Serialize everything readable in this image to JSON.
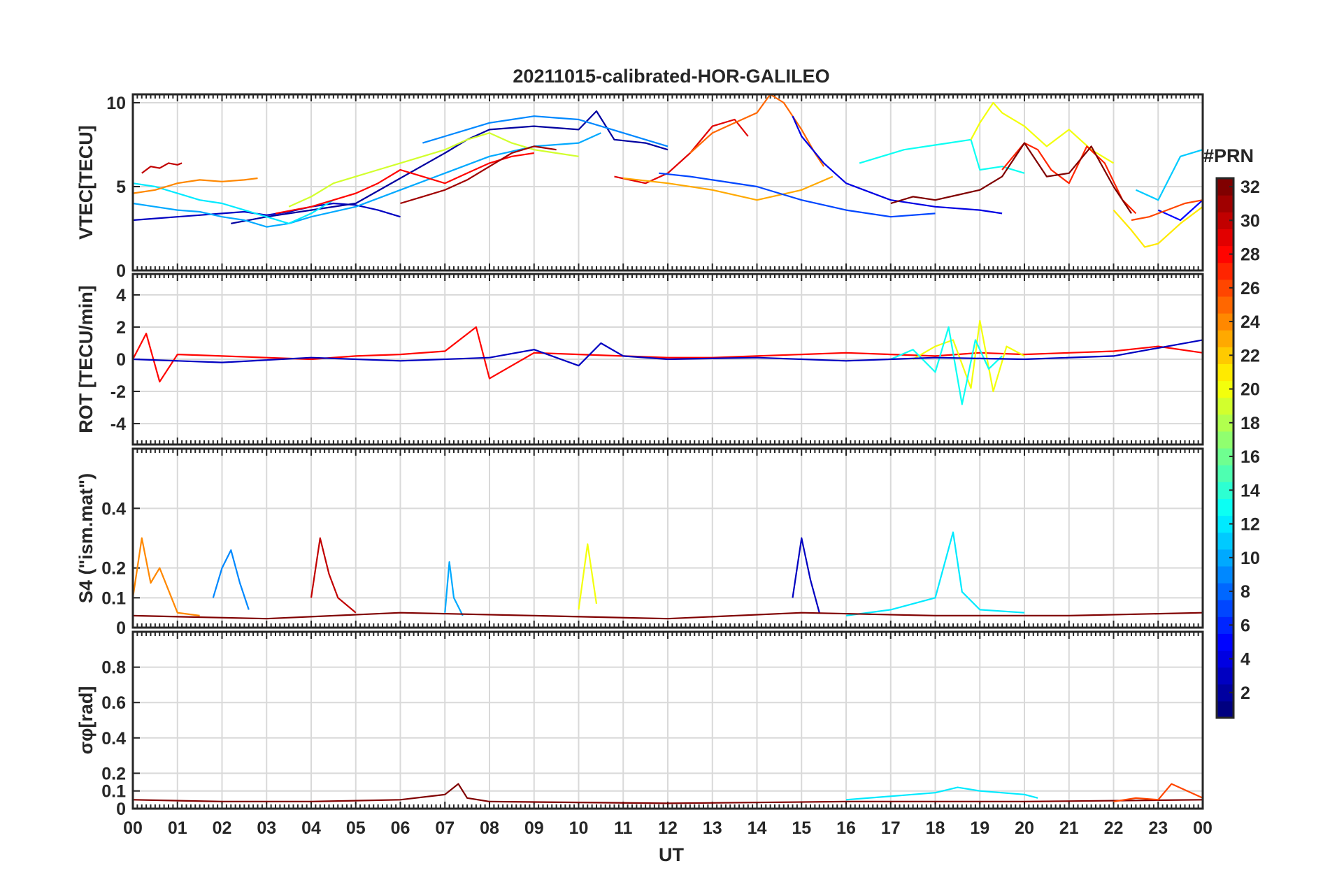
{
  "chart_data": {
    "title": "20211015-calibrated-HOR-GALILEO",
    "type": "line",
    "shared_x": {
      "label": "UT",
      "range_hours": [
        0,
        24
      ],
      "tick_labels": [
        "00",
        "01",
        "02",
        "03",
        "04",
        "05",
        "06",
        "07",
        "08",
        "09",
        "10",
        "11",
        "12",
        "13",
        "14",
        "15",
        "16",
        "17",
        "18",
        "19",
        "20",
        "21",
        "22",
        "23",
        "00"
      ]
    },
    "grid": true,
    "colorbar": {
      "title": "#PRN",
      "colormap": "jet",
      "range": [
        1,
        32
      ],
      "tick_labels": [
        "2",
        "4",
        "6",
        "8",
        "10",
        "12",
        "14",
        "16",
        "18",
        "20",
        "22",
        "24",
        "26",
        "28",
        "30",
        "32"
      ],
      "placement": "right"
    },
    "panels": [
      {
        "id": "vtec",
        "ylabel": "VTEC[TECU]",
        "ylim": [
          0,
          10.5
        ],
        "yticks": [
          0,
          5,
          10
        ],
        "ytick_labels": [
          "0",
          "5",
          "10"
        ],
        "series": [
          {
            "prn": 3,
            "x": [
              0,
              0.5,
              1,
              1.5,
              2,
              2.5,
              3,
              3.5,
              4,
              4.5,
              5,
              5.5,
              6
            ],
            "y": [
              3,
              3.1,
              3.2,
              3.3,
              3.4,
              3.5,
              3.3,
              3.5,
              3.8,
              4,
              3.9,
              3.6,
              3.2
            ]
          },
          {
            "prn": 2,
            "x": [
              2.2,
              3,
              4,
              5,
              6,
              7,
              7.5,
              8,
              9,
              10,
              10.4,
              10.8,
              11.5,
              12
            ],
            "y": [
              2.8,
              3.2,
              3.6,
              4,
              5.5,
              7,
              7.8,
              8.4,
              8.6,
              8.4,
              9.5,
              7.8,
              7.6,
              7.2
            ]
          },
          {
            "prn": 10,
            "x": [
              0,
              0.5,
              1,
              1.5,
              2,
              2.5,
              3,
              3.5,
              4,
              5,
              6,
              7,
              8,
              9,
              10,
              10.5
            ],
            "y": [
              4,
              3.8,
              3.6,
              3.5,
              3.2,
              3,
              2.6,
              2.8,
              3.2,
              3.8,
              4.8,
              5.8,
              6.8,
              7.4,
              7.6,
              8.2
            ]
          },
          {
            "prn": 12,
            "x": [
              0,
              0.5,
              1,
              1.5,
              2,
              2.5,
              3,
              3.5,
              4,
              4.5
            ],
            "y": [
              5.2,
              5,
              4.6,
              4.2,
              4,
              3.6,
              3.2,
              2.8,
              3.4,
              4.2
            ]
          },
          {
            "prn": 19,
            "x": [
              3.5,
              4,
              4.5,
              5,
              5.5,
              6,
              6.5,
              7,
              7.5,
              8,
              8.5,
              9,
              9.5,
              10
            ],
            "y": [
              3.8,
              4.4,
              5.2,
              5.6,
              6,
              6.4,
              6.8,
              7.2,
              7.8,
              8.2,
              7.6,
              7.2,
              7,
              6.8
            ]
          },
          {
            "prn": 9,
            "x": [
              6.5,
              7,
              7.5,
              8,
              8.5,
              9,
              9.5,
              10,
              10.5,
              11,
              11.5,
              12
            ],
            "y": [
              7.6,
              8,
              8.4,
              8.8,
              9,
              9.2,
              9.1,
              9,
              8.6,
              8.2,
              7.8,
              7.4
            ]
          },
          {
            "prn": 30,
            "x": [
              0.2,
              0.4,
              0.6,
              0.8,
              1,
              1.1
            ],
            "y": [
              5.8,
              6.2,
              6.1,
              6.4,
              6.3,
              6.4
            ]
          },
          {
            "prn": 24,
            "x": [
              0,
              0.5,
              1,
              1.5,
              2,
              2.5,
              2.8
            ],
            "y": [
              4.6,
              4.8,
              5.2,
              5.4,
              5.3,
              5.4,
              5.5
            ]
          },
          {
            "prn": 28,
            "x": [
              3.2,
              3.6,
              4,
              4.5,
              5,
              5.5,
              6,
              6.5,
              7,
              7.5,
              8,
              8.5,
              9
            ],
            "y": [
              3.4,
              3.6,
              3.8,
              4.2,
              4.6,
              5.2,
              6,
              5.6,
              5.2,
              5.8,
              6.4,
              6.8,
              7
            ]
          },
          {
            "prn": 31,
            "x": [
              6,
              6.5,
              7,
              7.5,
              8,
              8.5,
              9,
              9.5
            ],
            "y": [
              4,
              4.4,
              4.8,
              5.4,
              6.2,
              7,
              7.4,
              7.2
            ]
          },
          {
            "prn": 29,
            "x": [
              10.8,
              11.5,
              12,
              12.5,
              13,
              13.5,
              13.8
            ],
            "y": [
              5.6,
              5.2,
              5.8,
              7,
              8.6,
              9,
              8
            ]
          },
          {
            "prn": 25,
            "x": [
              12.5,
              13,
              13.5,
              14,
              14.3,
              14.6,
              15,
              15.3,
              15.5
            ],
            "y": [
              7,
              8.2,
              8.8,
              9.4,
              10.5,
              10,
              8.4,
              7,
              6.2
            ]
          },
          {
            "prn": 23,
            "x": [
              11,
              12,
              13,
              14,
              15,
              15.7
            ],
            "y": [
              5.5,
              5.2,
              4.8,
              4.2,
              4.8,
              5.6
            ]
          },
          {
            "prn": 4,
            "x": [
              14.8,
              15,
              15.5,
              16,
              17,
              18,
              19,
              19.5
            ],
            "y": [
              9.2,
              8,
              6.4,
              5.2,
              4.2,
              3.8,
              3.6,
              3.4
            ]
          },
          {
            "prn": 7,
            "x": [
              11.8,
              12.5,
              13,
              14,
              15,
              16,
              17,
              18
            ],
            "y": [
              5.8,
              5.6,
              5.4,
              5,
              4.2,
              3.6,
              3.2,
              3.4
            ]
          },
          {
            "prn": 13,
            "x": [
              16.3,
              16.8,
              17.3,
              17.8,
              18.3,
              18.8,
              19,
              19.5,
              20
            ],
            "y": [
              6.4,
              6.8,
              7.2,
              7.4,
              7.6,
              7.8,
              6,
              6.2,
              5.8
            ]
          },
          {
            "prn": 20,
            "x": [
              18.8,
              19,
              19.3,
              19.5,
              20,
              20.5,
              21,
              21.5,
              22
            ],
            "y": [
              7.8,
              8.8,
              10,
              9.4,
              8.6,
              7.4,
              8.4,
              7.2,
              6.4
            ]
          },
          {
            "prn": 27,
            "x": [
              19.5,
              20,
              20.3,
              20.6,
              21,
              21.4,
              21.8,
              22.2,
              22.5
            ],
            "y": [
              6,
              7.6,
              7.2,
              6,
              5.2,
              7.4,
              6.4,
              4.2,
              3.4
            ]
          },
          {
            "prn": 32,
            "x": [
              17,
              17.5,
              18,
              18.5,
              19,
              19.5,
              20,
              20.5,
              21,
              21.5,
              22,
              22.4
            ],
            "y": [
              4,
              4.4,
              4.2,
              4.5,
              4.8,
              5.6,
              7.6,
              5.6,
              5.8,
              7.4,
              5,
              3.4
            ]
          },
          {
            "prn": 21,
            "x": [
              22,
              22.4,
              22.7,
              23,
              23.5,
              24
            ],
            "y": [
              3.6,
              2.4,
              1.4,
              1.6,
              2.8,
              3.8
            ]
          },
          {
            "prn": 11,
            "x": [
              22.5,
              23,
              23.5,
              24
            ],
            "y": [
              4.8,
              4.2,
              6.8,
              7.2
            ]
          },
          {
            "prn": 5,
            "x": [
              23,
              23.5,
              24
            ],
            "y": [
              3.6,
              3,
              4.2
            ]
          },
          {
            "prn": 26,
            "x": [
              22.4,
              22.8,
              23.2,
              23.6,
              24
            ],
            "y": [
              3,
              3.2,
              3.6,
              4,
              4.2
            ]
          }
        ]
      },
      {
        "id": "rot",
        "ylabel": "ROT [TECU/min]",
        "ylim": [
          -5.3,
          5.3
        ],
        "yticks": [
          -4,
          -2,
          0,
          2,
          4
        ],
        "ytick_labels": [
          "-4",
          "-2",
          "0",
          "2",
          "4"
        ],
        "series": [
          {
            "prn": 28,
            "x": [
              0,
              0.3,
              0.6,
              1,
              2,
              3,
              4,
              5,
              6,
              7,
              7.7,
              8,
              9,
              10,
              11,
              12,
              13,
              14,
              15,
              16,
              17,
              18,
              19,
              20,
              21,
              22,
              23,
              24
            ],
            "y": [
              0,
              1.6,
              -1.4,
              0.3,
              0.2,
              0.1,
              0,
              0.2,
              0.3,
              0.5,
              2,
              -1.2,
              0.4,
              0.3,
              0.2,
              0.1,
              0.1,
              0.2,
              0.3,
              0.4,
              0.3,
              0.2,
              0.4,
              0.3,
              0.4,
              0.5,
              0.8,
              0.4
            ]
          },
          {
            "prn": 20,
            "x": [
              17.5,
              18,
              18.4,
              18.8,
              19,
              19.3,
              19.6,
              20
            ],
            "y": [
              0,
              0.8,
              1.2,
              -1.8,
              2.4,
              -2,
              0.8,
              0.2
            ]
          },
          {
            "prn": 13,
            "x": [
              17,
              17.5,
              18,
              18.3,
              18.6,
              18.9,
              19.2,
              19.5
            ],
            "y": [
              0,
              0.6,
              -0.8,
              2,
              -2.8,
              1.2,
              -0.6,
              0.2
            ]
          },
          {
            "prn": 3,
            "x": [
              0,
              2,
              4,
              6,
              8,
              9,
              10,
              10.5,
              11,
              12,
              14,
              16,
              18,
              20,
              22,
              24
            ],
            "y": [
              0,
              -0.2,
              0.1,
              -0.1,
              0.1,
              0.6,
              -0.4,
              1,
              0.2,
              0,
              0.1,
              -0.1,
              0.1,
              0,
              0.2,
              1.2
            ]
          }
        ]
      },
      {
        "id": "s4",
        "ylabel": "S4 (\"ism.mat\")",
        "ylim": [
          0,
          0.6
        ],
        "yticks": [
          0,
          0.1,
          0.2,
          0.4
        ],
        "ytick_labels": [
          "0",
          "0.1",
          "0.2",
          "0.4"
        ],
        "series": [
          {
            "prn": 24,
            "x": [
              0,
              0.2,
              0.4,
              0.6,
              1,
              1.5
            ],
            "y": [
              0.1,
              0.3,
              0.15,
              0.2,
              0.05,
              0.04
            ]
          },
          {
            "prn": 9,
            "x": [
              1.8,
              2,
              2.2,
              2.4,
              2.6
            ],
            "y": [
              0.1,
              0.2,
              0.26,
              0.15,
              0.06
            ]
          },
          {
            "prn": 30,
            "x": [
              4,
              4.2,
              4.4,
              4.6,
              5
            ],
            "y": [
              0.1,
              0.3,
              0.18,
              0.1,
              0.05
            ]
          },
          {
            "prn": 10,
            "x": [
              7,
              7.1,
              7.2,
              7.4
            ],
            "y": [
              0.05,
              0.22,
              0.1,
              0.04
            ]
          },
          {
            "prn": 20,
            "x": [
              10,
              10.2,
              10.4
            ],
            "y": [
              0.06,
              0.28,
              0.08
            ]
          },
          {
            "prn": 3,
            "x": [
              14.8,
              15,
              15.2,
              15.4
            ],
            "y": [
              0.1,
              0.3,
              0.16,
              0.05
            ]
          },
          {
            "prn": 12,
            "x": [
              16,
              17,
              18,
              18.4,
              18.6,
              19,
              20
            ],
            "y": [
              0.04,
              0.06,
              0.1,
              0.32,
              0.12,
              0.06,
              0.05
            ]
          },
          {
            "prn": 32,
            "x": [
              0,
              3,
              6,
              9,
              12,
              15,
              18,
              21,
              24
            ],
            "y": [
              0.04,
              0.03,
              0.05,
              0.04,
              0.03,
              0.05,
              0.04,
              0.04,
              0.05
            ]
          }
        ]
      },
      {
        "id": "sigma_phi",
        "ylabel": "σφ[rad]",
        "ylim": [
          0,
          1
        ],
        "yticks": [
          0,
          0.1,
          0.2,
          0.4,
          0.6,
          0.8
        ],
        "ytick_labels": [
          "0",
          "0.1",
          "0.2",
          "0.4",
          "0.6",
          "0.8"
        ],
        "series": [
          {
            "prn": 32,
            "x": [
              0,
              2,
              4,
              6,
              7,
              7.3,
              7.5,
              8,
              12,
              16,
              20,
              24
            ],
            "y": [
              0.05,
              0.04,
              0.04,
              0.05,
              0.08,
              0.14,
              0.06,
              0.04,
              0.03,
              0.04,
              0.04,
              0.05
            ]
          },
          {
            "prn": 12,
            "x": [
              16,
              17,
              18,
              18.5,
              19,
              20,
              20.3
            ],
            "y": [
              0.05,
              0.07,
              0.09,
              0.12,
              0.1,
              0.08,
              0.06
            ]
          },
          {
            "prn": 26,
            "x": [
              22,
              22.5,
              23,
              23.3,
              24
            ],
            "y": [
              0.04,
              0.06,
              0.05,
              0.14,
              0.06
            ]
          }
        ]
      }
    ]
  }
}
